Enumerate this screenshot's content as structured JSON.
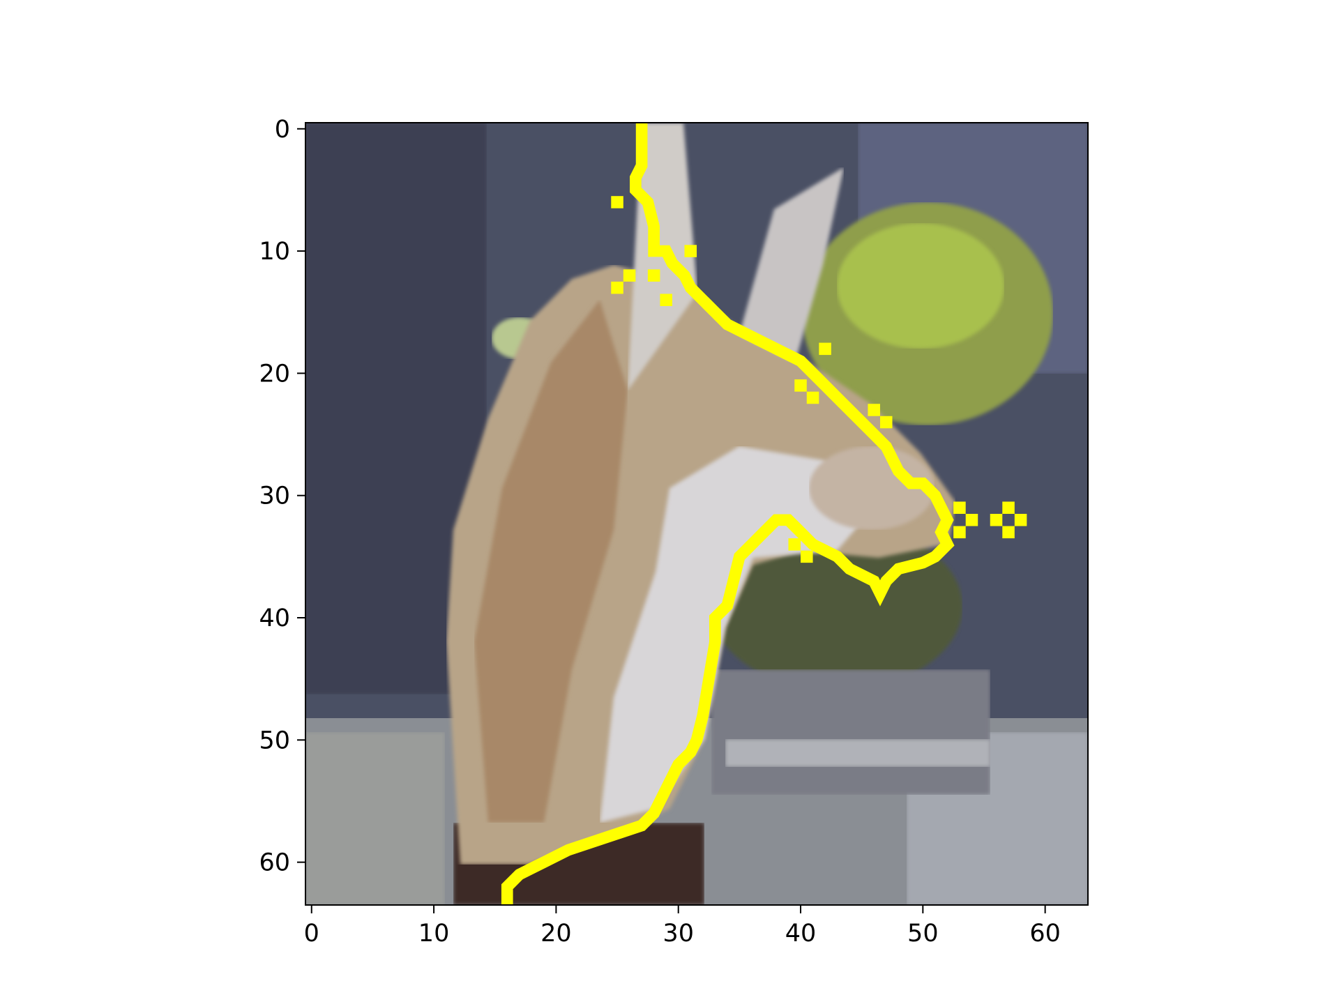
{
  "figure": {
    "type": "image-with-contour-overlay",
    "image_description": "64x64 pixel low-resolution photo of a fox/coyote-like animal head facing right, tan and grey fur, green foliage in background, grey ground",
    "overlay_color": "#ffff00",
    "overlay_description": "yellow pixel-stepped segmentation boundary outlining the animal's head and neck"
  },
  "axes": {
    "x_ticks": [
      "0",
      "10",
      "20",
      "30",
      "40",
      "50",
      "60"
    ],
    "y_ticks": [
      "0",
      "10",
      "20",
      "30",
      "40",
      "50",
      "60"
    ],
    "x_range": [
      -0.5,
      63.5
    ],
    "y_range": [
      63.5,
      -0.5
    ]
  },
  "contour_points": [
    [
      27,
      -0.5
    ],
    [
      27,
      3
    ],
    [
      26.5,
      4
    ],
    [
      26.5,
      5
    ],
    [
      27.5,
      6
    ],
    [
      28,
      8
    ],
    [
      28,
      10
    ],
    [
      29,
      10
    ],
    [
      29.5,
      11
    ],
    [
      30.5,
      12
    ],
    [
      31,
      13
    ],
    [
      32,
      14
    ],
    [
      33,
      15
    ],
    [
      34,
      16
    ],
    [
      36,
      17
    ],
    [
      38,
      18
    ],
    [
      40,
      19
    ],
    [
      41,
      20
    ],
    [
      42,
      21
    ],
    [
      43,
      22
    ],
    [
      44,
      23
    ],
    [
      45,
      24
    ],
    [
      46,
      25
    ],
    [
      47,
      26
    ],
    [
      48,
      28
    ],
    [
      49,
      29
    ],
    [
      50,
      29
    ],
    [
      51,
      30
    ],
    [
      51.5,
      31
    ],
    [
      52,
      32
    ],
    [
      51.5,
      33
    ],
    [
      52,
      34
    ],
    [
      51,
      35
    ],
    [
      50,
      35.5
    ],
    [
      48,
      36
    ],
    [
      47,
      37
    ],
    [
      46.5,
      38
    ],
    [
      46,
      37
    ],
    [
      44,
      36
    ],
    [
      43,
      35
    ],
    [
      41,
      34
    ],
    [
      40,
      33
    ],
    [
      39,
      32
    ],
    [
      38,
      32
    ],
    [
      37,
      33
    ],
    [
      36,
      34
    ],
    [
      35,
      35
    ],
    [
      34.5,
      37
    ],
    [
      34,
      39
    ],
    [
      33,
      40
    ],
    [
      33,
      42
    ],
    [
      32.5,
      45
    ],
    [
      32,
      48
    ],
    [
      31.5,
      50
    ],
    [
      31,
      51
    ],
    [
      30,
      52
    ],
    [
      29,
      54
    ],
    [
      28,
      56
    ],
    [
      27,
      57
    ],
    [
      24,
      58
    ],
    [
      21,
      59
    ],
    [
      19,
      60
    ],
    [
      17,
      61
    ],
    [
      16,
      62
    ],
    [
      16,
      63.5
    ]
  ],
  "contour_extras": [
    [
      25,
      6
    ],
    [
      25,
      13
    ],
    [
      26,
      12
    ],
    [
      28,
      12
    ],
    [
      29,
      14
    ],
    [
      31,
      10
    ],
    [
      42,
      18
    ],
    [
      40,
      21
    ],
    [
      41,
      22
    ],
    [
      46,
      23
    ],
    [
      47,
      24
    ],
    [
      39.5,
      34
    ],
    [
      40.5,
      35
    ],
    [
      53,
      31
    ],
    [
      54,
      32
    ],
    [
      53,
      33
    ],
    [
      57,
      31
    ],
    [
      58,
      32
    ],
    [
      57,
      33
    ],
    [
      56,
      32
    ]
  ]
}
